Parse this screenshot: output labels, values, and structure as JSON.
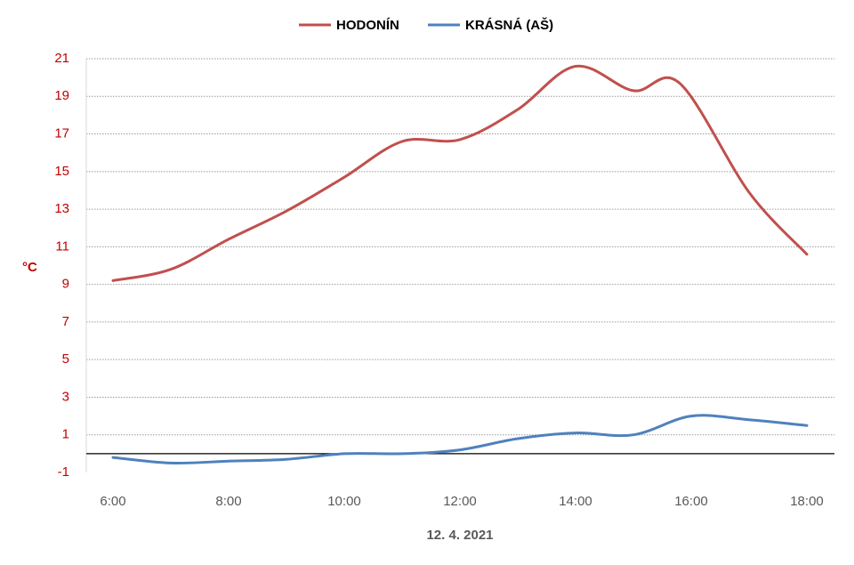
{
  "chart_data": {
    "type": "line",
    "title": "",
    "xlabel": "12. 4. 2021",
    "ylabel": "°C",
    "xlim": [
      6,
      18
    ],
    "ylim": [
      -1,
      21
    ],
    "y_ticks": [
      -1,
      1,
      3,
      5,
      7,
      9,
      11,
      13,
      15,
      17,
      19,
      21
    ],
    "x_ticks": [
      6,
      8,
      10,
      12,
      14,
      16,
      18
    ],
    "x_tick_labels": [
      "6:00",
      "8:00",
      "10:00",
      "12:00",
      "14:00",
      "16:00",
      "18:00"
    ],
    "grid": true,
    "legend": "top-center",
    "colors": {
      "ylabel": "#c00000",
      "yticks": "#c00000",
      "xticks": "#595959",
      "xlabel": "#595959",
      "grid": "#9a9a9a",
      "zero_line": "#000000"
    },
    "series": [
      {
        "name": "HODONÍN",
        "color": "#c0504d",
        "x": [
          6,
          7,
          8,
          9,
          10,
          11,
          12,
          13,
          14,
          15,
          15.8,
          17,
          18
        ],
        "values": [
          9.2,
          9.8,
          11.4,
          12.9,
          14.7,
          16.6,
          16.7,
          18.3,
          20.6,
          19.3,
          19.7,
          13.9,
          10.6
        ]
      },
      {
        "name": "KRÁSNÁ (AŠ)",
        "color": "#4f81bd",
        "x": [
          6,
          7,
          8,
          9,
          10,
          11,
          12,
          13,
          14,
          15,
          16,
          17,
          18
        ],
        "values": [
          -0.2,
          -0.5,
          -0.4,
          -0.3,
          0.0,
          0.0,
          0.2,
          0.8,
          1.1,
          1.0,
          2.0,
          1.8,
          1.5
        ]
      }
    ]
  }
}
